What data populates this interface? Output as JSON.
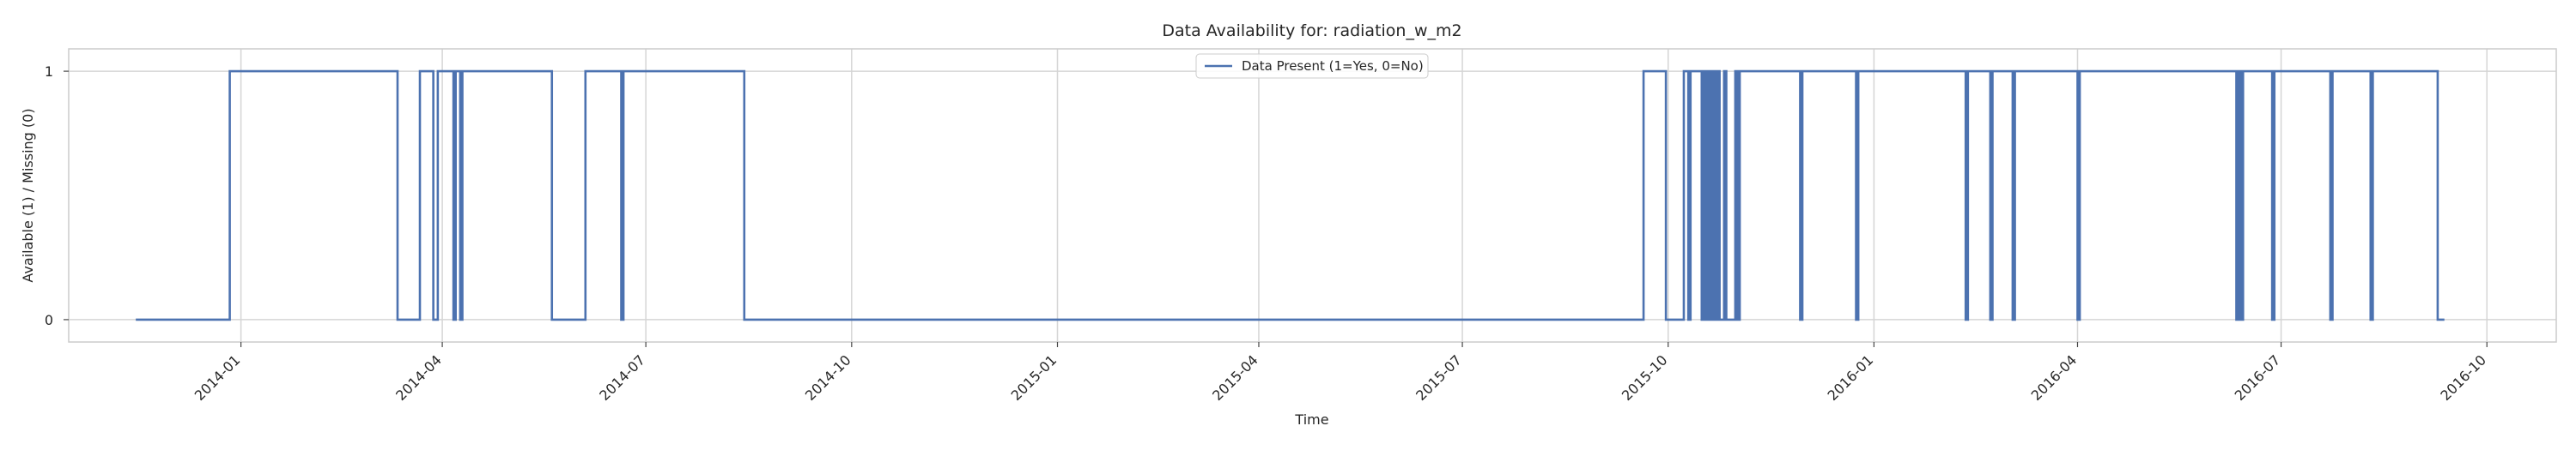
{
  "chart_data": {
    "type": "line",
    "step": true,
    "title": "Data Availability for: radiation_w_m2",
    "xlabel": "Time",
    "ylabel": "Available (1) / Missing (0)",
    "x_type": "date",
    "xlim": [
      "2013-10-16",
      "2016-11-01"
    ],
    "ylim": [
      -0.09,
      1.09
    ],
    "yticks": [
      0,
      1
    ],
    "xticks": [
      "2014-01",
      "2014-04",
      "2014-07",
      "2014-10",
      "2015-01",
      "2015-04",
      "2015-07",
      "2015-10",
      "2016-01",
      "2016-04",
      "2016-07",
      "2016-10"
    ],
    "grid": true,
    "legend": {
      "position": "top-center"
    },
    "colors": {
      "series": "#4c72b0",
      "grid": "#d5d5d5",
      "frame": "#cccccc",
      "background": "#ffffff"
    },
    "series": [
      {
        "name": "Data Present (1=Yes, 0=No)",
        "points": [
          [
            "2013-11-15",
            0
          ],
          [
            "2013-12-27",
            1
          ],
          [
            "2014-03-12",
            0
          ],
          [
            "2014-03-22",
            1
          ],
          [
            "2014-03-28",
            0
          ],
          [
            "2014-03-30",
            1
          ],
          [
            "2014-04-06",
            0
          ],
          [
            "2014-04-07",
            1
          ],
          [
            "2014-04-09",
            0
          ],
          [
            "2014-04-10",
            1
          ],
          [
            "2014-05-20",
            0
          ],
          [
            "2014-06-04",
            1
          ],
          [
            "2014-06-20",
            0
          ],
          [
            "2014-06-21",
            1
          ],
          [
            "2014-08-14",
            0
          ],
          [
            "2015-09-20",
            1
          ],
          [
            "2015-09-30",
            0
          ],
          [
            "2015-10-08",
            1
          ],
          [
            "2015-10-10",
            0
          ],
          [
            "2015-10-11",
            1
          ],
          [
            "2015-10-16",
            0
          ],
          [
            "2015-10-17",
            1
          ],
          [
            "2015-10-18",
            0
          ],
          [
            "2015-10-19",
            1
          ],
          [
            "2015-10-20",
            0
          ],
          [
            "2015-10-21",
            1
          ],
          [
            "2015-10-22",
            0
          ],
          [
            "2015-10-23",
            1
          ],
          [
            "2015-10-24",
            0
          ],
          [
            "2015-10-26",
            1
          ],
          [
            "2015-10-27",
            0
          ],
          [
            "2015-10-31",
            1
          ],
          [
            "2015-11-01",
            0
          ],
          [
            "2015-11-02",
            1
          ],
          [
            "2015-11-29",
            0
          ],
          [
            "2015-11-30",
            1
          ],
          [
            "2015-12-24",
            0
          ],
          [
            "2015-12-25",
            1
          ],
          [
            "2016-02-11",
            0
          ],
          [
            "2016-02-12",
            1
          ],
          [
            "2016-02-22",
            0
          ],
          [
            "2016-02-23",
            1
          ],
          [
            "2016-03-03",
            0
          ],
          [
            "2016-03-04",
            1
          ],
          [
            "2016-04-01",
            0
          ],
          [
            "2016-04-02",
            1
          ],
          [
            "2016-06-11",
            0
          ],
          [
            "2016-06-12",
            1
          ],
          [
            "2016-06-13",
            0
          ],
          [
            "2016-06-14",
            1
          ],
          [
            "2016-06-27",
            0
          ],
          [
            "2016-06-28",
            1
          ],
          [
            "2016-07-23",
            0
          ],
          [
            "2016-07-24",
            1
          ],
          [
            "2016-08-10",
            0
          ],
          [
            "2016-08-11",
            1
          ],
          [
            "2016-09-09",
            0
          ],
          [
            "2016-09-12",
            0
          ]
        ]
      }
    ]
  }
}
